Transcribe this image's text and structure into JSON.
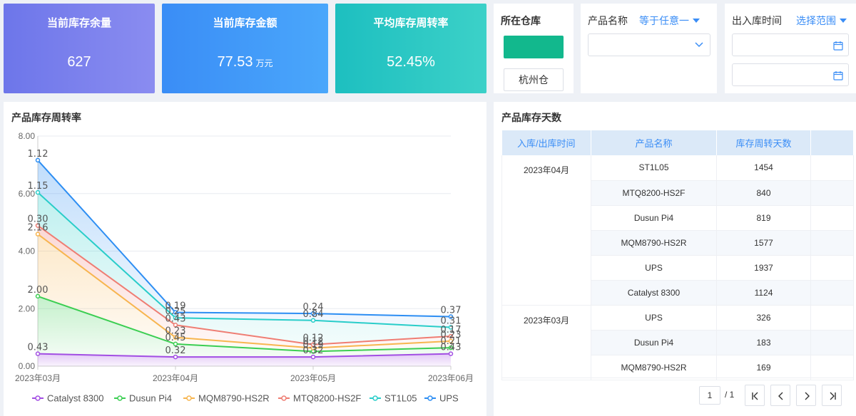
{
  "kpis": [
    {
      "title": "当前库存余量",
      "value": "627",
      "unit": ""
    },
    {
      "title": "当前库存金额",
      "value": "77.53",
      "unit": "万元"
    },
    {
      "title": "平均库存周转率",
      "value": "52.45%",
      "unit": ""
    }
  ],
  "warehouse_filter": {
    "label": "所在仓库",
    "swatch_color": "#12b88d",
    "button_label": "杭州仓"
  },
  "product_filter": {
    "label": "产品名称",
    "operator": "等于任意一"
  },
  "time_filter": {
    "label": "出入库时间",
    "operator": "选择范围"
  },
  "turnover_chart": {
    "title": "产品库存周转率"
  },
  "days_table": {
    "title": "产品库存天数",
    "columns": [
      "入库/出库时间",
      "产品名称",
      "库存周转天数",
      ""
    ],
    "groups": [
      {
        "time": "2023年04月",
        "rows": [
          {
            "product": "ST1L05",
            "days": "1454"
          },
          {
            "product": "MTQ8200-HS2F",
            "days": "840"
          },
          {
            "product": "Dusun Pi4",
            "days": "819"
          },
          {
            "product": "MQM8790-HS2R",
            "days": "1577"
          },
          {
            "product": "UPS",
            "days": "1937"
          },
          {
            "product": "Catalyst 8300",
            "days": "1124"
          }
        ]
      },
      {
        "time": "2023年03月",
        "rows": [
          {
            "product": "UPS",
            "days": "326"
          },
          {
            "product": "Dusun Pi4",
            "days": "183"
          },
          {
            "product": "MQM8790-HS2R",
            "days": "169"
          }
        ]
      }
    ],
    "pagination": {
      "current": "1",
      "total": "/ 1"
    }
  },
  "chart_data": {
    "type": "area",
    "stacked": true,
    "title": "产品库存周转率",
    "x": [
      "2023年03月",
      "2023年04月",
      "2023年05月",
      "2023年06月"
    ],
    "ylim": [
      0,
      8
    ],
    "yticks": [
      "0.00",
      "2.00",
      "4.00",
      "6.00",
      "8.00"
    ],
    "grid": true,
    "legend_position": "bottom",
    "series": [
      {
        "name": "Catalyst 8300",
        "color": "#a24ee3",
        "values": [
          0.43,
          0.32,
          0.32,
          0.43
        ],
        "labels": [
          "0.43",
          "0.32",
          "0.32",
          "0.43"
        ]
      },
      {
        "name": "Dusun Pi4",
        "color": "#3bce52",
        "values": [
          2.0,
          0.45,
          0.19,
          0.21
        ],
        "labels": [
          "2.00",
          "0.45",
          "0.19",
          "0.21"
        ]
      },
      {
        "name": "MQM8790-HS2R",
        "color": "#f7b54f",
        "values": [
          2.16,
          0.23,
          0.12,
          0.23
        ],
        "labels": [
          "2.16",
          "0.23",
          "0.12",
          "0.23"
        ]
      },
      {
        "name": "MTQ8200-HS2F",
        "color": "#ef7d73",
        "values": [
          0.3,
          0.43,
          0.12,
          0.17
        ],
        "labels": [
          "0.30",
          "0.43",
          "0.12",
          "0.17"
        ]
      },
      {
        "name": "ST1L05",
        "color": "#29cdc9",
        "values": [
          1.15,
          0.25,
          0.84,
          0.31
        ],
        "labels": [
          "1.15",
          "0.25",
          "0.84",
          "0.31"
        ]
      },
      {
        "name": "UPS",
        "color": "#2d8ef3",
        "values": [
          1.12,
          0.19,
          0.24,
          0.37
        ],
        "labels": [
          "1.12",
          "0.19",
          "0.24",
          "0.37"
        ]
      }
    ]
  }
}
